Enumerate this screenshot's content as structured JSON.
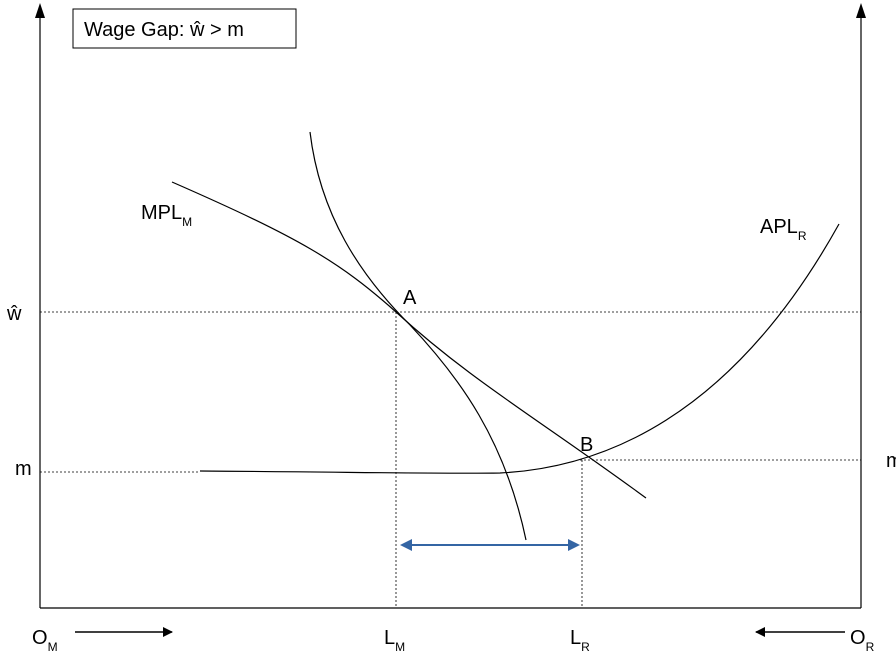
{
  "title": "Wage Gap: ŵ > m",
  "axes": {
    "left_wage_label": "ŵ",
    "left_m_label": "m",
    "right_m_label": "m",
    "origin_left": {
      "main": "O",
      "sub": "M"
    },
    "origin_right": {
      "main": "O",
      "sub": "R"
    },
    "l_m": {
      "main": "L",
      "sub": "M"
    },
    "l_r": {
      "main": "L",
      "sub": "R"
    }
  },
  "curves": {
    "mpl": {
      "main": "MPL",
      "sub": "M"
    },
    "apl": {
      "main": "APL",
      "sub": "R"
    }
  },
  "points": {
    "a": "A",
    "b": "B"
  },
  "colors": {
    "line": "#000000",
    "arrow": "#3465a4"
  }
}
